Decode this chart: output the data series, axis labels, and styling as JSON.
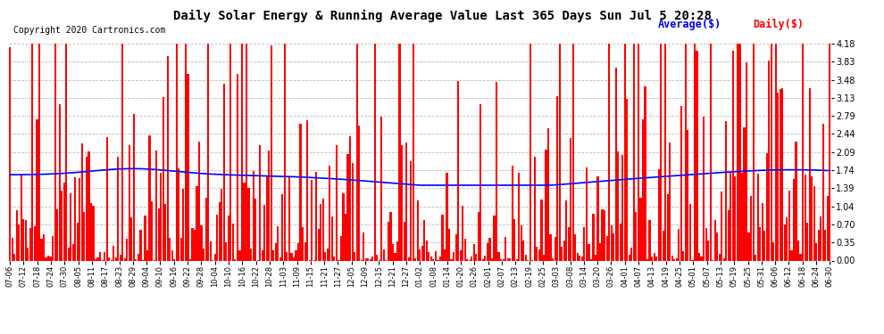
{
  "title": "Daily Solar Energy & Running Average Value Last 365 Days Sun Jul 5 20:28",
  "copyright": "Copyright 2020 Cartronics.com",
  "legend_avg": "Average($)",
  "legend_daily": "Daily($)",
  "bar_color": "#ff0000",
  "avg_line_color": "#0000ff",
  "background_color": "#ffffff",
  "plot_bg_color": "#ffffff",
  "grid_color": "#bbbbbb",
  "ylim": [
    0.0,
    4.18
  ],
  "yticks": [
    0.0,
    0.35,
    0.7,
    1.04,
    1.39,
    1.74,
    2.09,
    2.44,
    2.79,
    3.13,
    3.48,
    3.83,
    4.18
  ],
  "x_labels": [
    "07-06",
    "07-12",
    "07-18",
    "07-24",
    "07-30",
    "08-05",
    "08-11",
    "08-17",
    "08-23",
    "08-29",
    "09-04",
    "09-10",
    "09-16",
    "09-22",
    "09-28",
    "10-04",
    "10-10",
    "10-16",
    "10-22",
    "10-28",
    "11-03",
    "11-09",
    "11-15",
    "11-21",
    "11-27",
    "12-05",
    "12-09",
    "12-15",
    "12-21",
    "12-27",
    "01-02",
    "01-08",
    "01-14",
    "01-20",
    "01-26",
    "02-01",
    "02-07",
    "02-13",
    "02-19",
    "02-25",
    "03-03",
    "03-08",
    "03-14",
    "03-20",
    "03-26",
    "04-01",
    "04-07",
    "04-13",
    "04-19",
    "04-25",
    "05-01",
    "05-07",
    "05-13",
    "05-19",
    "05-25",
    "05-31",
    "06-06",
    "06-12",
    "06-18",
    "06-24",
    "06-30"
  ]
}
